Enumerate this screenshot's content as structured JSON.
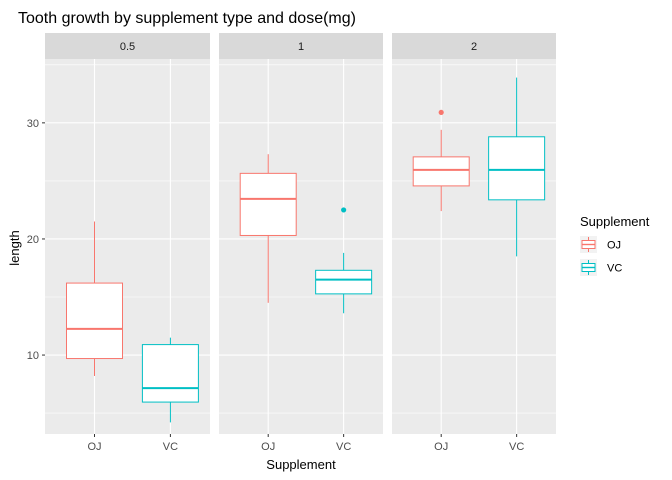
{
  "chart_data": {
    "type": "boxplot",
    "title": "Tooth growth by supplement type and dose(mg)",
    "xlabel": "Supplement",
    "ylabel": "length",
    "yticks": [
      10,
      20,
      30
    ],
    "ylim": [
      3.2,
      35.5
    ],
    "grid": true,
    "legend": {
      "title": "Supplement",
      "position": "right",
      "entries": [
        {
          "label": "OJ",
          "color": "#F8766D"
        },
        {
          "label": "VC",
          "color": "#00BFC4"
        }
      ]
    },
    "facets": [
      {
        "label": "0.5",
        "boxes": [
          {
            "category": "OJ",
            "min": 8.2,
            "q1": 9.7,
            "median": 12.25,
            "q3": 16.2,
            "max": 21.5,
            "outliers": []
          },
          {
            "category": "VC",
            "min": 4.2,
            "q1": 5.95,
            "median": 7.15,
            "q3": 10.9,
            "max": 11.5,
            "outliers": []
          }
        ]
      },
      {
        "label": "1",
        "boxes": [
          {
            "category": "OJ",
            "min": 14.5,
            "q1": 20.3,
            "median": 23.45,
            "q3": 25.65,
            "max": 27.3,
            "outliers": []
          },
          {
            "category": "VC",
            "min": 13.6,
            "q1": 15.27,
            "median": 16.5,
            "q3": 17.3,
            "max": 18.8,
            "outliers": [
              22.5
            ]
          }
        ]
      },
      {
        "label": "2",
        "boxes": [
          {
            "category": "OJ",
            "min": 22.4,
            "q1": 24.57,
            "median": 25.95,
            "q3": 27.07,
            "max": 29.4,
            "outliers": [
              30.9
            ]
          },
          {
            "category": "VC",
            "min": 18.5,
            "q1": 23.37,
            "median": 25.95,
            "q3": 28.8,
            "max": 33.9,
            "outliers": []
          }
        ]
      }
    ],
    "colors": {
      "OJ": "#F8766D",
      "VC": "#00BFC4"
    },
    "panel_background": "#EBEBEB",
    "strip_background": "#D9D9D9"
  }
}
